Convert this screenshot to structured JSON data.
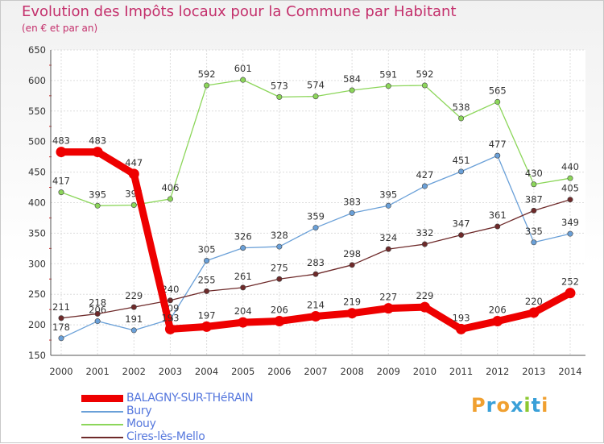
{
  "header": {
    "title": "Evolution des Impôts locaux pour la Commune par Habitant",
    "subtitle": "(en € et par an)"
  },
  "logo": {
    "letters": [
      "P",
      "r",
      "o",
      "x",
      "i",
      "t",
      "i"
    ],
    "colors": [
      "#f0a030",
      "#3aa0d8",
      "#f0a030",
      "#3aa0d8",
      "#8cc832",
      "#3aa0d8",
      "#f0a030"
    ]
  },
  "chart_data": {
    "type": "line",
    "title": "Evolution des Impôts locaux pour la Commune par Habitant",
    "subtitle": "(en € et par an)",
    "xlabel": "",
    "ylabel": "",
    "ylim": [
      150,
      650
    ],
    "yticks": [
      "150",
      "200",
      "250",
      "300",
      "350",
      "400",
      "450",
      "500",
      "550",
      "600",
      "650"
    ],
    "grid": true,
    "legend_position": "bottom-left",
    "categories": [
      "2000",
      "2001",
      "2002",
      "2003",
      "2004",
      "2005",
      "2006",
      "2007",
      "2008",
      "2009",
      "2010",
      "2011",
      "2012",
      "2013",
      "2014"
    ],
    "series": [
      {
        "name": "BALAGNY-SUR-THéRAIN",
        "color": "#ee0000",
        "values": [
          483,
          483,
          447,
          193,
          197,
          204,
          206,
          214,
          219,
          227,
          229,
          193,
          206,
          220,
          252
        ]
      },
      {
        "name": "Bury",
        "color": "#6aa0d8",
        "values": [
          178,
          206,
          191,
          209,
          305,
          326,
          328,
          359,
          383,
          395,
          427,
          451,
          477,
          335,
          349
        ]
      },
      {
        "name": "Mouy",
        "color": "#8cd65a",
        "values": [
          417,
          395,
          396,
          406,
          592,
          601,
          573,
          574,
          584,
          591,
          592,
          538,
          565,
          430,
          440
        ]
      },
      {
        "name": "Cires-lès-Mello",
        "color": "#6e2a2a",
        "values": [
          211,
          218,
          229,
          240,
          255,
          261,
          275,
          283,
          298,
          324,
          332,
          347,
          361,
          387,
          405
        ]
      }
    ]
  }
}
